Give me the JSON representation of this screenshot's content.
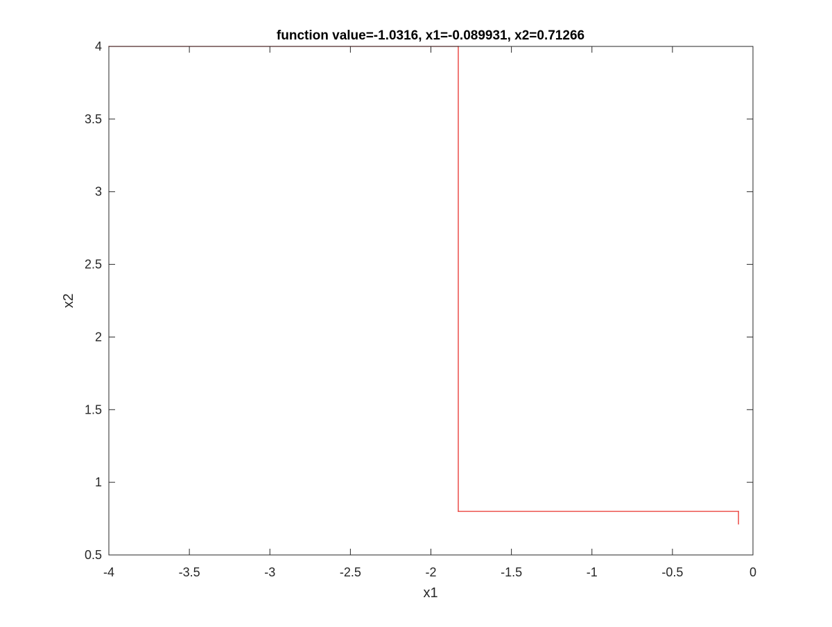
{
  "chart_data": {
    "type": "line",
    "title": "function value=-1.0316, x1=-0.089931, x2=0.71266",
    "xlabel": "x1",
    "ylabel": "x2",
    "xlim": [
      -4,
      0
    ],
    "ylim": [
      0.5,
      4
    ],
    "xticks": [
      -4,
      -3.5,
      -3,
      -2.5,
      -2,
      -1.5,
      -1,
      -0.5,
      0
    ],
    "xtick_labels": [
      "-4",
      "-3.5",
      "-3",
      "-2.5",
      "-2",
      "-1.5",
      "-1",
      "-0.5",
      "0"
    ],
    "yticks": [
      0.5,
      1,
      1.5,
      2,
      2.5,
      3,
      3.5,
      4
    ],
    "ytick_labels": [
      "0.5",
      "1",
      "1.5",
      "2",
      "2.5",
      "3",
      "3.5",
      "4"
    ],
    "grid": false,
    "series": [
      {
        "color": "#e8312b",
        "x": [
          -4,
          -1.83,
          -1.83,
          -0.09,
          -0.09
        ],
        "y": [
          4,
          4,
          0.8,
          0.8,
          0.71266
        ]
      }
    ]
  }
}
